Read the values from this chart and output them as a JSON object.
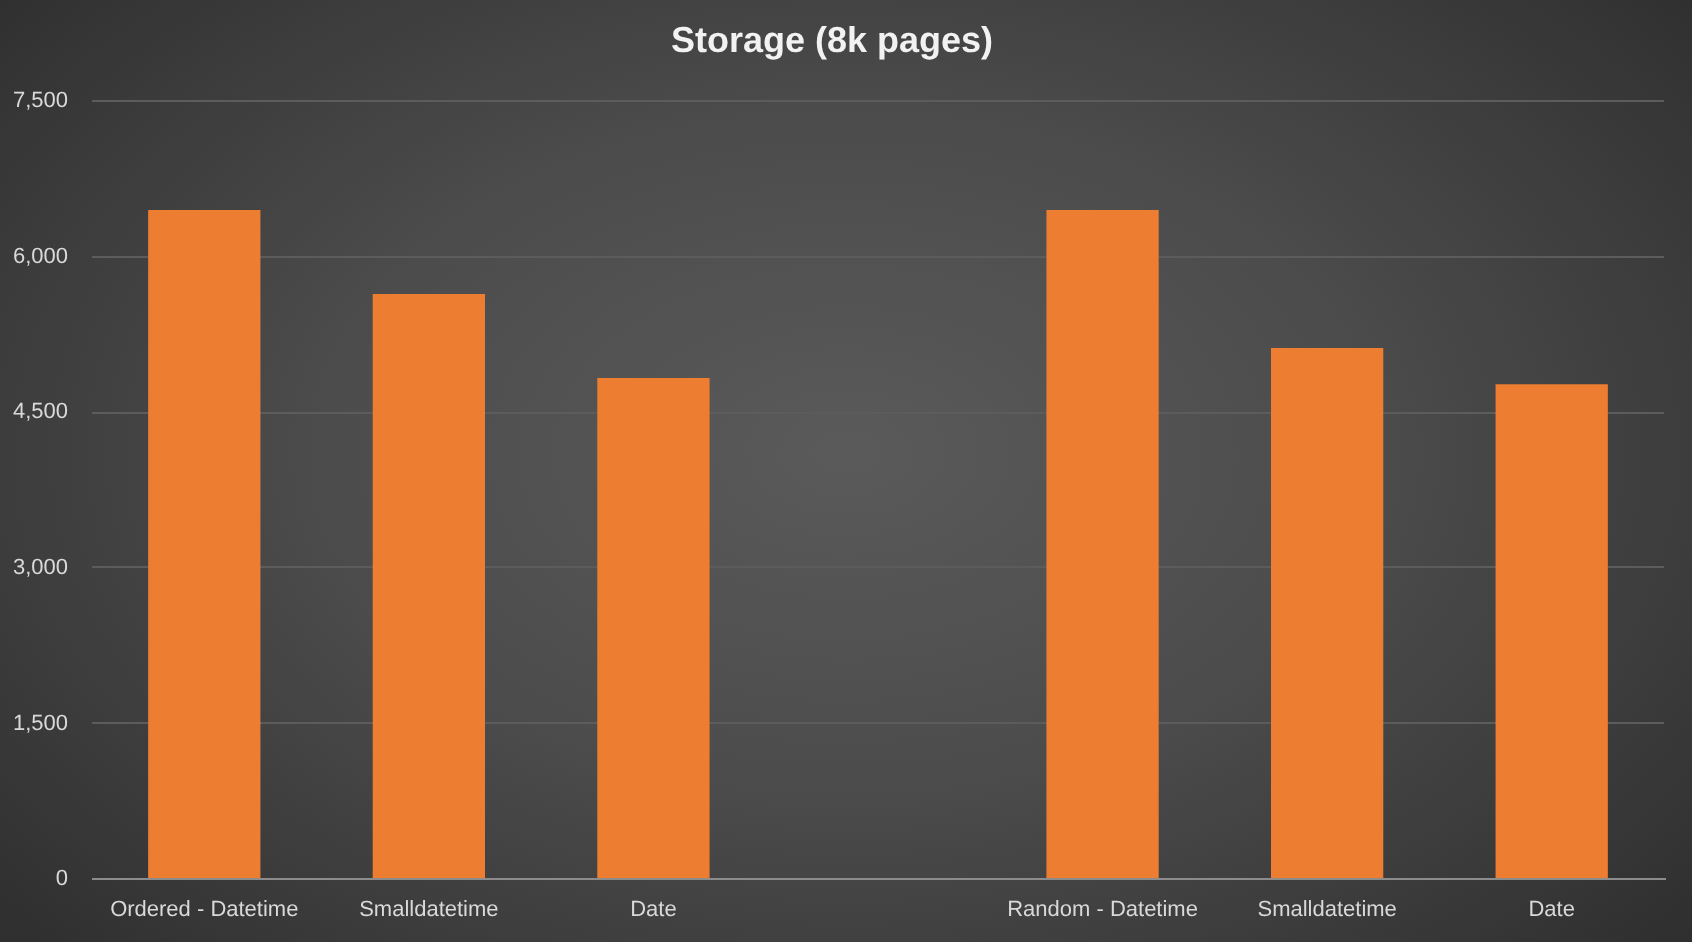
{
  "chart_data": {
    "type": "bar",
    "title": "Storage (8k pages)",
    "categories": [
      "Ordered - Datetime",
      "Smalldatetime",
      "Date",
      null,
      "Random - Datetime",
      "Smalldatetime",
      "Date"
    ],
    "values": [
      6450,
      5640,
      4830,
      null,
      6450,
      5120,
      4770
    ],
    "color": "#ed7d31",
    "ylim": [
      0,
      7500
    ],
    "yticks": [
      0,
      {
        "value": 1500,
        "label": "1,500"
      },
      {
        "value": 3000,
        "label": "3,000"
      },
      {
        "value": 4500,
        "label": "4,500"
      },
      {
        "value": 6000,
        "label": "6,000"
      },
      {
        "value": 7500,
        "label": "7,500"
      }
    ],
    "grid": "y"
  }
}
